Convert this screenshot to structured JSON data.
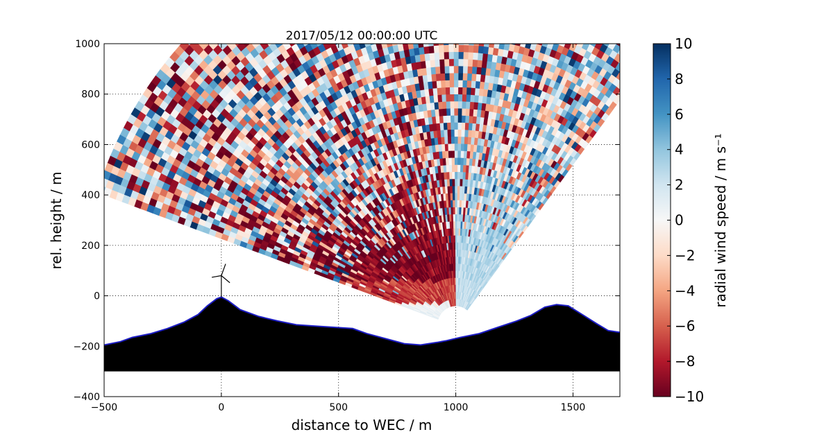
{
  "chart_data": {
    "type": "heatmap",
    "title": "2017/05/12 00:00:00 UTC",
    "xlabel": "distance to WEC / m",
    "ylabel": "rel. height / m",
    "xlim": [
      -500,
      1700
    ],
    "ylim": [
      -400,
      1000
    ],
    "x_ticks": [
      "−500",
      "0",
      "500",
      "1000",
      "1500"
    ],
    "y_ticks": [
      "−400",
      "−200",
      "0",
      "200",
      "400",
      "600",
      "800",
      "1000"
    ],
    "grid": true,
    "scan": {
      "origin_x": 1000,
      "origin_y": -120,
      "azimuth_deg": [
        52,
        160
      ],
      "range_m": [
        80,
        1600
      ],
      "wrap_deg": 90,
      "color_min": -10,
      "color_max": 10
    },
    "terrain": {
      "x": [
        -500,
        -430,
        -380,
        -300,
        -230,
        -160,
        -100,
        -60,
        -20,
        0,
        30,
        80,
        160,
        240,
        320,
        400,
        480,
        560,
        620,
        700,
        780,
        850,
        920,
        960,
        1020,
        1100,
        1180,
        1260,
        1320,
        1380,
        1430,
        1480,
        1540,
        1600,
        1650,
        1700
      ],
      "y": [
        -195,
        -182,
        -165,
        -150,
        -130,
        -105,
        -75,
        -40,
        -12,
        -5,
        -20,
        -55,
        -82,
        -100,
        -115,
        -120,
        -125,
        -130,
        -150,
        -170,
        -190,
        -195,
        -185,
        -178,
        -165,
        -150,
        -125,
        -100,
        -78,
        -45,
        -35,
        -40,
        -75,
        -110,
        -138,
        -145
      ],
      "base_y": -300,
      "outline_color": "#1d1dc4",
      "fill_color": "#000000"
    },
    "turbine": {
      "x": 0,
      "tower_height": 80
    },
    "colorbar": {
      "label": "radial wind speed / m s⁻¹",
      "ticks": [
        "−10",
        "−8",
        "−6",
        "−4",
        "−2",
        "0",
        "2",
        "4",
        "6",
        "8",
        "10"
      ],
      "colormap": "RdBu",
      "stops": [
        "#67001f",
        "#b2182b",
        "#d6604d",
        "#f4a582",
        "#fddbc7",
        "#f7f7f7",
        "#d1e5f0",
        "#92c5de",
        "#4393c3",
        "#2166ac",
        "#053061"
      ]
    }
  }
}
